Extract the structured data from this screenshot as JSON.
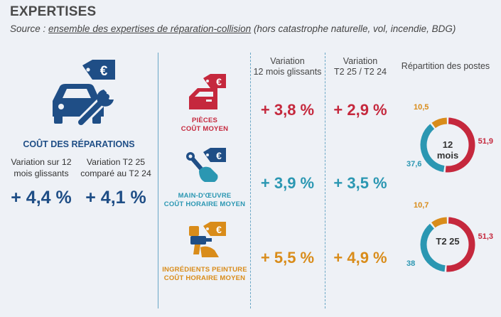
{
  "header": {
    "title": "EXPERTISES",
    "source_prefix": "Source : ",
    "source_underlined": "ensemble des expertises de réparation-collision",
    "source_suffix": " (hors catastrophe naturelle, vol, incendie, BDG)"
  },
  "summary": {
    "title": "COÛT DES RÉPARATIONS",
    "left_label_1": "Variation sur 12",
    "left_label_2": "mois glissants",
    "right_label_1": "Variation T2 25",
    "right_label_2": "comparé au T2 24",
    "left_value": "+ 4,4 %",
    "right_value": "+ 4,1 %",
    "icon": "car-wrench-euro-icon"
  },
  "columns": {
    "col1_line1": "Variation",
    "col1_line2": "12 mois glissants",
    "col2_line1": "Variation",
    "col2_line2": "T2 25 / T2 24",
    "col3": "Répartition des postes"
  },
  "rows": [
    {
      "label_1": "PIÈCES",
      "label_2": "COÛT MOYEN",
      "var12": "+ 3,8 %",
      "varT2": "+ 2,9 %",
      "color": "#c5283d",
      "icon": "car-door-euro-icon"
    },
    {
      "label_1": "MAIN-D'ŒUVRE",
      "label_2": "COÛT HORAIRE MOYEN",
      "var12": "+ 3,9 %",
      "varT2": "+ 3,5 %",
      "color": "#2b97b2",
      "icon": "hand-wrench-euro-icon"
    },
    {
      "label_1": "INGRÉDIENTS PEINTURE",
      "label_2": "COÛT HORAIRE MOYEN",
      "var12": "+ 5,5 %",
      "varT2": "+ 4,9 %",
      "color": "#d98c1a",
      "icon": "paint-gun-euro-icon"
    }
  ],
  "chart_data": [
    {
      "type": "pie",
      "center_label": "12 mois",
      "categories": [
        "Pièces",
        "Main-d'œuvre",
        "Ingrédients peinture"
      ],
      "values": [
        51.9,
        37.6,
        10.5
      ],
      "labels": [
        "51,9",
        "37,6",
        "10,5"
      ],
      "colors": [
        "#c5283d",
        "#2b97b2",
        "#d98c1a"
      ]
    },
    {
      "type": "pie",
      "center_label": "T2 25",
      "categories": [
        "Pièces",
        "Main-d'œuvre",
        "Ingrédients peinture"
      ],
      "values": [
        51.3,
        38,
        10.7
      ],
      "labels": [
        "51,3",
        "38",
        "10,7"
      ],
      "colors": [
        "#c5283d",
        "#2b97b2",
        "#d98c1a"
      ]
    }
  ]
}
